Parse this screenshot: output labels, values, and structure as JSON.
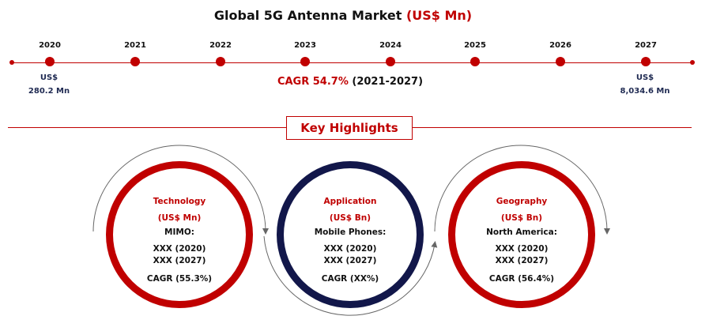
{
  "header": {
    "title_main": "Global 5G Antenna Market",
    "title_unit": "(US$ Mn)"
  },
  "timeline": {
    "years": [
      "2020",
      "2021",
      "2022",
      "2023",
      "2024",
      "2025",
      "2026",
      "2027"
    ],
    "start_value": {
      "currency": "US$",
      "amount": "280.2 Mn"
    },
    "end_value": {
      "currency": "US$",
      "amount": "8,034.6 Mn"
    },
    "cagr_label": "CAGR 54.7%",
    "cagr_period": "(2021-2027)"
  },
  "key_highlights": {
    "heading": "Key Highlights",
    "cards": [
      {
        "title": "Technology",
        "unit": "(US$ Mn)",
        "segment": "MIMO:",
        "line1": "XXX (2020)",
        "line2": "XXX (2027)",
        "cagr": "CAGR (55.3%)"
      },
      {
        "title": "Application",
        "unit": "(US$ Bn)",
        "segment": "Mobile Phones:",
        "line1": "XXX (2020)",
        "line2": "XXX (2027)",
        "cagr": "CAGR (XX%)"
      },
      {
        "title": "Geography",
        "unit": "(US$ Bn)",
        "segment": "North America:",
        "line1": "XXX (2020)",
        "line2": "XXX (2027)",
        "cagr": "CAGR (56.4%)"
      }
    ]
  },
  "colors": {
    "accent_red": "#c00000",
    "navy": "#12174a",
    "value_text": "#1f2a52",
    "arc_gray": "#666666"
  }
}
